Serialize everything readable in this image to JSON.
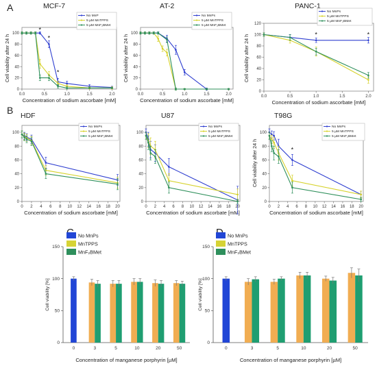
{
  "figure": {
    "panel_letters": [
      "A",
      "B",
      "C",
      "D"
    ]
  },
  "colors": {
    "blue": "#2f3fd0",
    "yellow": "#d6d22a",
    "green": "#2d8f5a",
    "bar_blue": "#2146d6",
    "bar_yellow": "#d6d335",
    "bar_green": "#2e8f5c",
    "bar_orange": "#f1ad52",
    "bar_teal": "#1f9e71",
    "error_bar": "#777777"
  },
  "chart_data": [
    {
      "id": "mcf7",
      "type": "line",
      "title": "MCF-7",
      "xlabel": "Concentration of sodium ascorbate [mM]",
      "ylabel": "Cell viability after 24 h",
      "xlim": [
        0.0,
        2.1
      ],
      "ylim": [
        0,
        110
      ],
      "xticks": [
        "0.0",
        "0.5",
        "1.0",
        "1.5",
        "2.0"
      ],
      "xtick_values": [
        0.0,
        0.5,
        1.0,
        1.5,
        2.0
      ],
      "yticks": [
        "0",
        "20",
        "40",
        "60",
        "80",
        "100"
      ],
      "ytick_values": [
        0,
        20,
        40,
        60,
        80,
        100
      ],
      "legend": "top-right",
      "annotations": [
        {
          "text": "*",
          "x": 0.4,
          "y": 106
        },
        {
          "text": "*",
          "x": 0.6,
          "y": 91
        },
        {
          "text": "*",
          "x": 0.8,
          "y": 30
        }
      ],
      "series": [
        {
          "name": "No MnP",
          "color": "#2f3fd0",
          "x": [
            0.0,
            0.1,
            0.2,
            0.3,
            0.4,
            0.6,
            0.8,
            1.0,
            1.5,
            2.0
          ],
          "values": [
            100,
            100,
            100,
            100,
            100,
            80,
            13,
            10,
            5,
            3
          ],
          "errors": [
            2,
            2,
            2,
            2,
            2,
            6,
            6,
            4,
            3,
            2
          ]
        },
        {
          "name": "5 µM MnTPPS",
          "color": "#d6d22a",
          "x": [
            0.0,
            0.1,
            0.2,
            0.3,
            0.4,
            0.6,
            0.8,
            1.0,
            1.5,
            2.0
          ],
          "values": [
            100,
            100,
            100,
            100,
            45,
            25,
            10,
            5,
            2,
            2
          ],
          "errors": [
            2,
            2,
            2,
            2,
            8,
            6,
            4,
            3,
            2,
            2
          ]
        },
        {
          "name": "5 µM MnF₂BMet",
          "color": "#2d8f5a",
          "x": [
            0.0,
            0.1,
            0.2,
            0.3,
            0.4,
            0.6,
            0.8,
            1.0,
            1.5,
            2.0
          ],
          "values": [
            100,
            100,
            100,
            100,
            20,
            20,
            5,
            2,
            2,
            2
          ],
          "errors": [
            2,
            2,
            2,
            2,
            5,
            5,
            3,
            2,
            1,
            1
          ]
        }
      ]
    },
    {
      "id": "at2",
      "type": "line",
      "title": "AT-2",
      "xlabel": "Concentration of sodium ascorbate [mM]",
      "ylabel": "Cell viability after 24 h",
      "xlim": [
        0.0,
        2.1
      ],
      "ylim": [
        0,
        110
      ],
      "xticks": [
        "0.0",
        "0.5",
        "1.0",
        "1.5",
        "2.0"
      ],
      "xtick_values": [
        0.0,
        0.5,
        1.0,
        1.5,
        2.0
      ],
      "yticks": [
        "0",
        "20",
        "40",
        "60",
        "80",
        "100"
      ],
      "ytick_values": [
        0,
        20,
        40,
        60,
        80,
        100
      ],
      "legend": "top-right",
      "series": [
        {
          "name": "No MnPs",
          "color": "#2f3fd0",
          "x": [
            0.0,
            0.1,
            0.2,
            0.3,
            0.4,
            0.6,
            0.8,
            1.0,
            1.5,
            2.0
          ],
          "values": [
            100,
            100,
            100,
            100,
            100,
            90,
            70,
            30,
            0,
            0
          ],
          "errors": [
            2,
            2,
            2,
            2,
            2,
            6,
            8,
            5,
            2,
            1
          ]
        },
        {
          "name": "5 µM MnTPPS",
          "color": "#d6d22a",
          "x": [
            0.0,
            0.1,
            0.2,
            0.3,
            0.4,
            0.5,
            0.6,
            0.8,
            1.0,
            1.5,
            2.0
          ],
          "values": [
            100,
            100,
            100,
            100,
            90,
            72,
            65,
            0,
            0,
            0,
            0
          ],
          "errors": [
            2,
            2,
            2,
            2,
            5,
            5,
            6,
            2,
            1,
            1,
            1
          ]
        },
        {
          "name": "5 µM MnF₂BMet",
          "color": "#2d8f5a",
          "x": [
            0.0,
            0.1,
            0.2,
            0.3,
            0.4,
            0.6,
            0.8,
            1.0,
            1.5,
            2.0
          ],
          "values": [
            100,
            100,
            100,
            100,
            100,
            88,
            0,
            0,
            0,
            0
          ],
          "errors": [
            2,
            2,
            2,
            2,
            2,
            5,
            2,
            1,
            1,
            1
          ]
        }
      ]
    },
    {
      "id": "panc1",
      "type": "line",
      "title": "PANC-1",
      "xlabel": "Concentration of sodium ascorbate [mM]",
      "ylabel": "Cell viability after 24 h",
      "xlim": [
        0.0,
        2.1
      ],
      "ylim": [
        0,
        120
      ],
      "xticks": [
        "0.0",
        "0.5",
        "1.0",
        "1.5",
        "2.0"
      ],
      "xtick_values": [
        0.0,
        0.5,
        1.0,
        1.5,
        2.0
      ],
      "yticks": [
        "0",
        "20",
        "40",
        "60",
        "80",
        "100",
        "120"
      ],
      "ytick_values": [
        0,
        20,
        40,
        60,
        80,
        100,
        120
      ],
      "legend": "top-right",
      "annotations": [
        {
          "text": "*",
          "x": 1.0,
          "y": 100
        },
        {
          "text": "*",
          "x": 2.0,
          "y": 100
        }
      ],
      "series": [
        {
          "name": "No MnPs",
          "color": "#2f3fd0",
          "x": [
            0.0,
            0.5,
            1.0,
            2.0
          ],
          "values": [
            100,
            95,
            90,
            90
          ],
          "errors": [
            3,
            5,
            4,
            5
          ]
        },
        {
          "name": "5 µM MnTPPS",
          "color": "#d6d22a",
          "x": [
            0.0,
            0.5,
            1.0,
            2.0
          ],
          "values": [
            100,
            90,
            70,
            20
          ],
          "errors": [
            3,
            5,
            8,
            6
          ]
        },
        {
          "name": "5 µM MnF₂BMet",
          "color": "#2d8f5a",
          "x": [
            0.0,
            0.5,
            1.0,
            2.0
          ],
          "values": [
            100,
            95,
            70,
            28
          ],
          "errors": [
            3,
            5,
            6,
            5
          ]
        }
      ]
    },
    {
      "id": "hdf",
      "type": "line",
      "title": "HDF",
      "xlabel": "Concentration of sodium ascorbate [mM]",
      "ylabel": "",
      "xlim": [
        0,
        20.5
      ],
      "ylim": [
        0,
        110
      ],
      "xticks": [
        "0",
        "2",
        "4",
        "6",
        "8",
        "10",
        "12",
        "14",
        "16",
        "18",
        "20"
      ],
      "xtick_values": [
        0,
        2,
        4,
        6,
        8,
        10,
        12,
        14,
        16,
        18,
        20
      ],
      "yticks": [
        "0",
        "20",
        "40",
        "60",
        "80",
        "100"
      ],
      "ytick_values": [
        0,
        20,
        40,
        60,
        80,
        100
      ],
      "legend": "top-right",
      "series": [
        {
          "name": "No MnPs",
          "color": "#2f3fd0",
          "x": [
            0,
            0.5,
            1,
            2,
            5,
            20
          ],
          "values": [
            97,
            95,
            93,
            90,
            56,
            31
          ],
          "errors": [
            5,
            5,
            5,
            6,
            8,
            8
          ]
        },
        {
          "name": "5 µM MnTPPS",
          "color": "#d6d22a",
          "x": [
            0,
            0.5,
            1,
            2,
            5,
            20
          ],
          "values": [
            97,
            94,
            92,
            88,
            45,
            27
          ],
          "errors": [
            5,
            5,
            5,
            6,
            7,
            8
          ]
        },
        {
          "name": "5 µM MnF₂BMet",
          "color": "#2d8f5a",
          "x": [
            0,
            0.5,
            1,
            2,
            5,
            20
          ],
          "values": [
            97,
            93,
            90,
            87,
            40,
            25
          ],
          "errors": [
            5,
            5,
            5,
            6,
            7,
            8
          ]
        }
      ]
    },
    {
      "id": "u87",
      "type": "line",
      "title": "U87",
      "xlabel": "Concentration of sodium ascorbate [mM]",
      "ylabel": "",
      "xlim": [
        0,
        20.5
      ],
      "ylim": [
        0,
        110
      ],
      "xticks": [
        "0",
        "2",
        "4",
        "6",
        "8",
        "10",
        "12",
        "14",
        "16",
        "18",
        "20"
      ],
      "xtick_values": [
        0,
        2,
        4,
        6,
        8,
        10,
        12,
        14,
        16,
        18,
        20
      ],
      "yticks": [
        "0",
        "20",
        "40",
        "60",
        "80",
        "100"
      ],
      "ytick_values": [
        0,
        20,
        40,
        60,
        80,
        100
      ],
      "legend": "top-right",
      "series": [
        {
          "name": "No MnPs",
          "color": "#2f3fd0",
          "x": [
            0,
            0.5,
            1,
            2,
            5,
            20
          ],
          "values": [
            100,
            90,
            75,
            70,
            50,
            2
          ],
          "errors": [
            5,
            10,
            12,
            12,
            12,
            20
          ]
        },
        {
          "name": "5 µM MnTPPS",
          "color": "#d6d22a",
          "x": [
            0,
            0.5,
            1,
            2,
            5,
            20
          ],
          "values": [
            95,
            88,
            80,
            75,
            30,
            10
          ],
          "errors": [
            5,
            10,
            12,
            12,
            10,
            8
          ]
        },
        {
          "name": "5 µM MnF₂BMet",
          "color": "#2d8f5a",
          "x": [
            0,
            0.5,
            1,
            2,
            5,
            20
          ],
          "values": [
            95,
            85,
            70,
            65,
            20,
            0
          ],
          "errors": [
            5,
            10,
            10,
            10,
            8,
            3
          ]
        }
      ]
    },
    {
      "id": "t98g",
      "type": "line",
      "title": "T98G",
      "xlabel": "Concentration of sodium ascorbate [mM]",
      "ylabel": "Cell viability after 24 h",
      "xlim": [
        0,
        20.5
      ],
      "ylim": [
        0,
        110
      ],
      "xticks": [
        "0",
        "2",
        "4",
        "6",
        "8",
        "10",
        "12",
        "14",
        "16",
        "18",
        "20"
      ],
      "xtick_values": [
        0,
        2,
        4,
        6,
        8,
        10,
        12,
        14,
        16,
        18,
        20
      ],
      "yticks": [
        "0",
        "20",
        "40",
        "60",
        "80",
        "100"
      ],
      "ytick_values": [
        0,
        20,
        40,
        60,
        80,
        100
      ],
      "legend": "top-right",
      "annotations": [
        {
          "text": "*",
          "x": 5,
          "y": 75
        }
      ],
      "series": [
        {
          "name": "No MnPs",
          "color": "#2f3fd0",
          "x": [
            0,
            0.5,
            1,
            2,
            5,
            20
          ],
          "values": [
            100,
            97,
            95,
            80,
            60,
            10
          ],
          "errors": [
            5,
            5,
            6,
            10,
            8,
            5
          ]
        },
        {
          "name": "5 µM MnTPPS",
          "color": "#d6d22a",
          "x": [
            0,
            0.5,
            1,
            2,
            5,
            20
          ],
          "values": [
            95,
            90,
            85,
            70,
            30,
            10
          ],
          "errors": [
            5,
            6,
            8,
            10,
            8,
            5
          ]
        },
        {
          "name": "5 µM MnF₂BMet",
          "color": "#2d8f5a",
          "x": [
            0,
            0.5,
            1,
            2,
            5,
            20
          ],
          "values": [
            95,
            80,
            70,
            65,
            20,
            3
          ],
          "errors": [
            5,
            8,
            10,
            10,
            8,
            3
          ]
        }
      ]
    },
    {
      "id": "panel_c",
      "type": "bar",
      "title": "",
      "xlabel": "Concentration of manganese porphyrin [µM]",
      "ylabel": "Cell viability [%]",
      "ylim": [
        0,
        150
      ],
      "categories": [
        "0",
        "3",
        "5",
        "10",
        "20",
        "50"
      ],
      "yticks": [
        "0",
        "50",
        "100",
        "150"
      ],
      "ytick_values": [
        0,
        50,
        100,
        150
      ],
      "legend": "top-left",
      "series": [
        {
          "name": "No MnPs",
          "color": "#2146d6",
          "values": [
            100,
            null,
            null,
            null,
            null,
            null
          ],
          "errors": [
            3,
            null,
            null,
            null,
            null,
            null
          ]
        },
        {
          "name": "MnTPPS",
          "color": "#f1ad52",
          "legend_color": "#d6d335",
          "values": [
            null,
            94,
            92,
            95,
            93,
            93
          ],
          "errors": [
            null,
            5,
            5,
            5,
            5,
            4
          ]
        },
        {
          "name": "MnF₂BMet",
          "color": "#1f9e71",
          "legend_color": "#2e8f5c",
          "values": [
            null,
            92,
            92,
            95,
            92,
            92
          ],
          "errors": [
            null,
            5,
            5,
            5,
            5,
            4
          ]
        }
      ]
    },
    {
      "id": "panel_d",
      "type": "bar",
      "title": "",
      "xlabel": "Concentration of manganese porphyrin [µM]",
      "ylabel": "Cell viability [%]",
      "ylim": [
        0,
        150
      ],
      "categories": [
        "0",
        "3",
        "5",
        "10",
        "20",
        "50"
      ],
      "yticks": [
        "0",
        "50",
        "100",
        "150"
      ],
      "ytick_values": [
        0,
        50,
        100,
        150
      ],
      "legend": "top-left",
      "series": [
        {
          "name": "No MnPs",
          "color": "#2146d6",
          "values": [
            100,
            null,
            null,
            null,
            null,
            null
          ],
          "errors": [
            3,
            null,
            null,
            null,
            null,
            null
          ]
        },
        {
          "name": "MnTPPS",
          "color": "#f1ad52",
          "legend_color": "#d6d335",
          "values": [
            null,
            95,
            95,
            105,
            100,
            109
          ],
          "errors": [
            null,
            5,
            4,
            5,
            4,
            8
          ]
        },
        {
          "name": "MnF₂BMet",
          "color": "#1f9e71",
          "legend_color": "#2e8f5c",
          "values": [
            null,
            99,
            100,
            105,
            97,
            105
          ],
          "errors": [
            null,
            4,
            3,
            5,
            5,
            10
          ]
        }
      ]
    }
  ]
}
